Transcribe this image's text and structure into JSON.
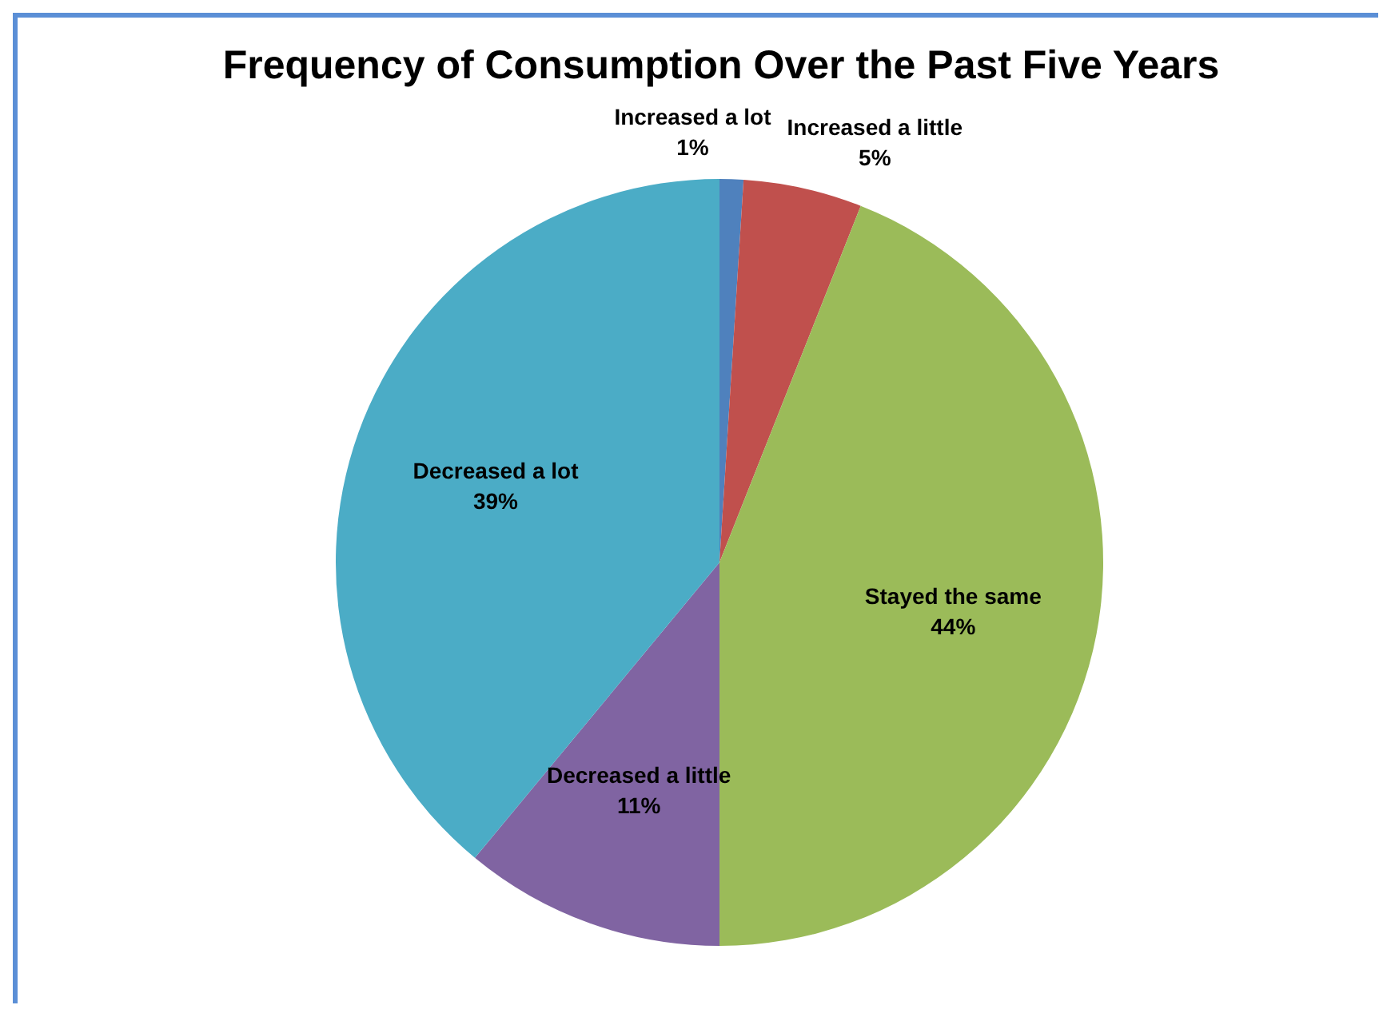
{
  "chart_data": {
    "type": "pie",
    "title": "Frequency of Consumption Over the Past Five Years",
    "categories": [
      "Increased a lot",
      "Increased a little",
      "Stayed the same",
      "Decreased a little",
      "Decreased a lot"
    ],
    "values": [
      1,
      5,
      44,
      11,
      39
    ],
    "colors": [
      "#4f81bd",
      "#c0504d",
      "#9bbb59",
      "#8064a2",
      "#4bacc6"
    ],
    "value_labels": [
      "1%",
      "5%",
      "44%",
      "11%",
      "39%"
    ]
  }
}
